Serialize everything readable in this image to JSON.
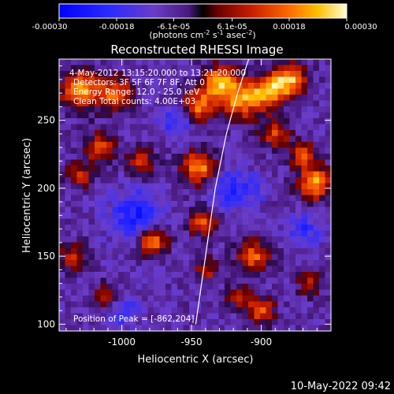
{
  "chart_data": {
    "type": "heatmap",
    "title": "Reconstructed RHESSI Image",
    "xlabel": "Heliocentric X (arcsec)",
    "ylabel": "Heliocentric Y (arcsec)",
    "xlim": [
      -1045,
      -850
    ],
    "ylim": [
      95,
      295
    ],
    "xticks": [
      -1000,
      -950,
      -900
    ],
    "yticks": [
      100,
      150,
      200,
      250
    ],
    "colorbar": {
      "min": -0.0003,
      "max": 0.0003,
      "ticks": [
        "-0.00030",
        "-0.00018",
        "-6.1e-05",
        "6.1e-05",
        "0.00018",
        "0.00030"
      ],
      "units_line1": "(photons cm",
      "units_sup1": "-2",
      "units_mid": " s",
      "units_sup2": "-1",
      "units_mid2": " asec",
      "units_sup3": "-2",
      "units_end": ")"
    },
    "annotations": [
      "4-May-2012 13:15:20.000 to 13:21:20.000",
      "Detectors: 3F 5F 6F 7F 8F, Att 0",
      "Energy Range: 12.0 - 25.0 keV",
      "Clean     Total counts: 4.00E+03"
    ],
    "peak_label": "Position of Peak = [-862,204]",
    "peak_position": [
      -862,
      204
    ],
    "limb": {
      "x": [
        -947,
        -940,
        -933,
        -925,
        -917,
        -909
      ],
      "y": [
        100,
        150,
        200,
        240,
        270,
        295
      ]
    },
    "hot_spots": [
      {
        "x": -1030,
        "y": 272,
        "r": 14,
        "amp": 0.00028
      },
      {
        "x": -1005,
        "y": 270,
        "r": 12,
        "amp": 0.00024
      },
      {
        "x": -1015,
        "y": 230,
        "r": 11,
        "amp": 0.0002
      },
      {
        "x": -985,
        "y": 218,
        "r": 10,
        "amp": 0.00018
      },
      {
        "x": -1030,
        "y": 210,
        "r": 10,
        "amp": 0.00016
      },
      {
        "x": -978,
        "y": 160,
        "r": 10,
        "amp": 0.00028
      },
      {
        "x": -1035,
        "y": 150,
        "r": 10,
        "amp": 0.00016
      },
      {
        "x": -1010,
        "y": 120,
        "r": 10,
        "amp": 0.00014
      },
      {
        "x": -945,
        "y": 260,
        "r": 12,
        "amp": 0.00026
      },
      {
        "x": -945,
        "y": 215,
        "r": 12,
        "amp": 0.00028
      },
      {
        "x": -942,
        "y": 175,
        "r": 10,
        "amp": 0.00022
      },
      {
        "x": -940,
        "y": 140,
        "r": 9,
        "amp": 0.00016
      },
      {
        "x": -930,
        "y": 278,
        "r": 12,
        "amp": 0.00028
      },
      {
        "x": -915,
        "y": 265,
        "r": 14,
        "amp": 0.00026
      },
      {
        "x": -895,
        "y": 270,
        "r": 12,
        "amp": 0.00028
      },
      {
        "x": -880,
        "y": 280,
        "r": 12,
        "amp": 0.0003
      },
      {
        "x": -890,
        "y": 240,
        "r": 10,
        "amp": 0.0002
      },
      {
        "x": -862,
        "y": 204,
        "r": 12,
        "amp": 0.0003
      },
      {
        "x": -870,
        "y": 225,
        "r": 9,
        "amp": 0.00022
      },
      {
        "x": -905,
        "y": 150,
        "r": 12,
        "amp": 0.00022
      },
      {
        "x": -915,
        "y": 120,
        "r": 9,
        "amp": 0.00016
      },
      {
        "x": -900,
        "y": 110,
        "r": 10,
        "amp": 0.0002
      },
      {
        "x": -865,
        "y": 130,
        "r": 9,
        "amp": 0.00014
      }
    ],
    "cold_spots": [
      {
        "x": -990,
        "y": 180,
        "r": 18,
        "amp": -0.00016
      },
      {
        "x": -960,
        "y": 250,
        "r": 12,
        "amp": -0.00014
      },
      {
        "x": -1000,
        "y": 110,
        "r": 12,
        "amp": -0.00012
      },
      {
        "x": -925,
        "y": 200,
        "r": 14,
        "amp": -0.00014
      },
      {
        "x": -905,
        "y": 200,
        "r": 10,
        "amp": -0.0001
      },
      {
        "x": -870,
        "y": 170,
        "r": 12,
        "amp": -0.00012
      }
    ]
  },
  "timestamp": "10-May-2022 09:42"
}
